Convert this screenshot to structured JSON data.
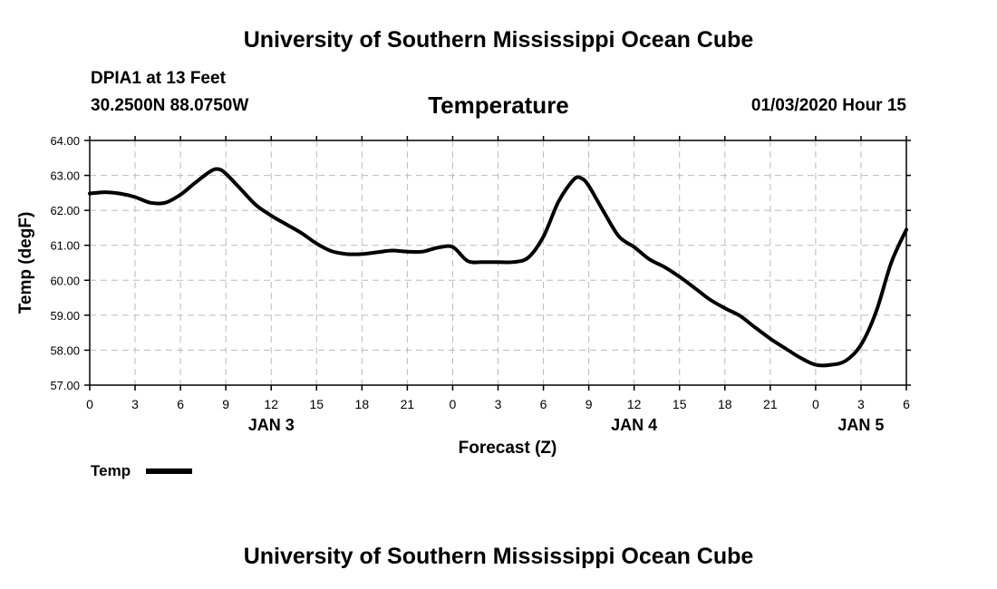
{
  "header": {
    "title": "University of Southern Mississippi Ocean Cube",
    "station": "DPIA1 at 13 Feet",
    "location": "30.2500N 88.0750W",
    "datetime": "01/03/2020 Hour 15"
  },
  "footer": {
    "title": "University of Southern Mississippi Ocean Cube"
  },
  "chart_data": {
    "type": "line",
    "title": "Temperature",
    "xlabel": "Forecast (Z)",
    "ylabel": "Temp (degF)",
    "ylim": [
      57.0,
      64.0
    ],
    "yticks": [
      "57.00",
      "58.00",
      "59.00",
      "60.00",
      "61.00",
      "62.00",
      "63.00",
      "64.00"
    ],
    "xlim_hours": [
      0,
      54
    ],
    "xtick_labels": [
      "0",
      "3",
      "6",
      "9",
      "12",
      "15",
      "18",
      "21",
      "0",
      "3",
      "6",
      "9",
      "12",
      "15",
      "18",
      "21",
      "0",
      "3",
      "6"
    ],
    "day_labels": [
      {
        "label": "JAN 3",
        "hour": 12
      },
      {
        "label": "JAN 4",
        "hour": 36
      },
      {
        "label": "JAN 5",
        "hour": 51
      }
    ],
    "grid": true,
    "legend_position": "bottom-left",
    "series": [
      {
        "name": "Temp",
        "color": "#000000",
        "x_hours": [
          0,
          1,
          2,
          3,
          4,
          5,
          6,
          7,
          8,
          8.5,
          9,
          10,
          11,
          12,
          13,
          14,
          15,
          16,
          17,
          18,
          19,
          20,
          21,
          22,
          23,
          24,
          25,
          26,
          27,
          28,
          29,
          30,
          31,
          32,
          32.5,
          33,
          34,
          35,
          36,
          37,
          38,
          39,
          40,
          41,
          42,
          43,
          44,
          45,
          46,
          47,
          48,
          49,
          50,
          51,
          52,
          53,
          54
        ],
        "values": [
          62.48,
          62.52,
          62.48,
          62.38,
          62.22,
          62.22,
          62.45,
          62.8,
          63.12,
          63.18,
          63.05,
          62.6,
          62.15,
          61.85,
          61.6,
          61.35,
          61.05,
          60.83,
          60.75,
          60.75,
          60.8,
          60.85,
          60.82,
          60.82,
          60.93,
          60.95,
          60.55,
          60.52,
          60.52,
          60.52,
          60.65,
          61.25,
          62.25,
          62.88,
          62.92,
          62.7,
          61.95,
          61.25,
          60.95,
          60.6,
          60.38,
          60.1,
          59.78,
          59.45,
          59.2,
          58.98,
          58.65,
          58.33,
          58.05,
          57.78,
          57.58,
          57.58,
          57.7,
          58.15,
          59.1,
          60.5,
          61.45
        ]
      }
    ]
  }
}
